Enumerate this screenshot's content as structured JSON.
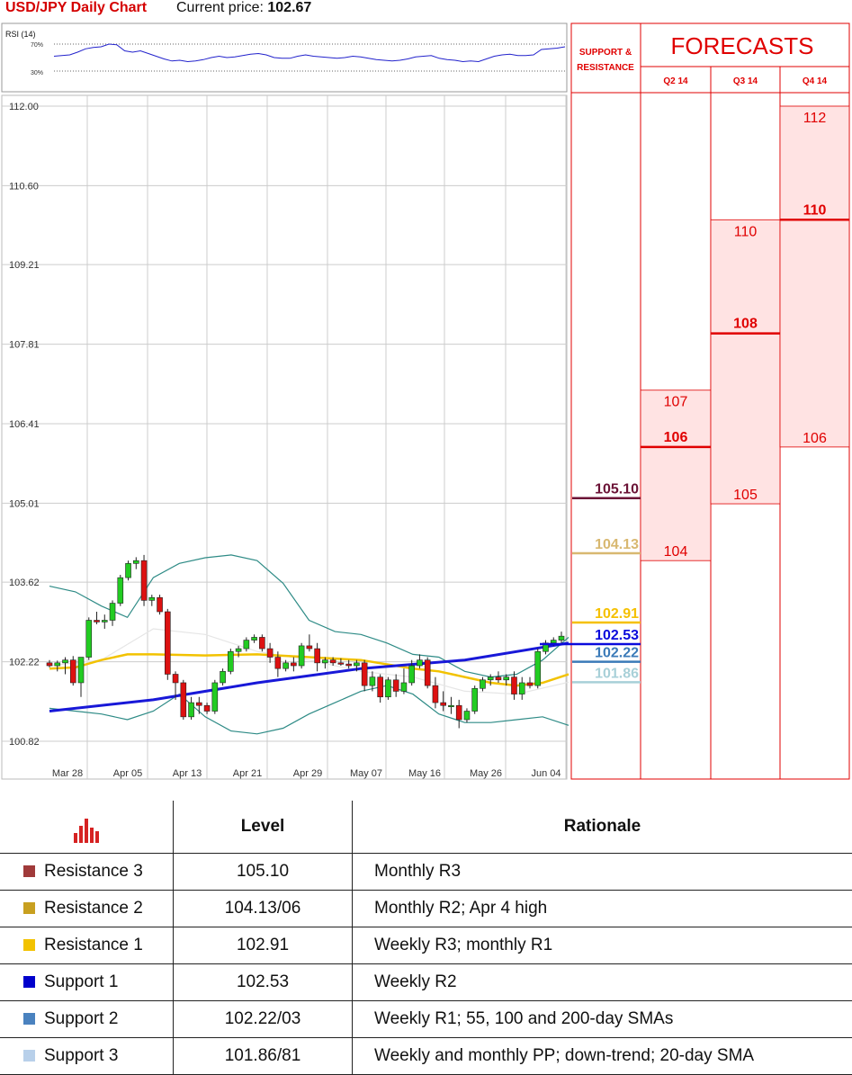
{
  "header": {
    "title": "USD/JPY Daily Chart",
    "price_label": "Current price:",
    "price_value": "102.67"
  },
  "rsi": {
    "label": "RSI (14)",
    "upper_label": "70%",
    "lower_label": "30%",
    "values": [
      52,
      53,
      54,
      58,
      63,
      65,
      66,
      70,
      69,
      60,
      58,
      60,
      56,
      52,
      48,
      45,
      46,
      44,
      45,
      47,
      50,
      52,
      50,
      51,
      53,
      55,
      56,
      54,
      50,
      49,
      49,
      52,
      54,
      52,
      51,
      50,
      49,
      50,
      52,
      51,
      49,
      47,
      46,
      45,
      46,
      48,
      51,
      52,
      53,
      49,
      47,
      46,
      44,
      45,
      44,
      48,
      52,
      54,
      55,
      53,
      53,
      54,
      62,
      63,
      64,
      66
    ]
  },
  "chart_data": {
    "type": "candlestick",
    "title": "USD/JPY Daily Chart",
    "ylim": [
      100.82,
      112.0
    ],
    "y_ticks": [
      "112.00",
      "110.60",
      "109.21",
      "107.81",
      "106.41",
      "105.01",
      "103.62",
      "102.22",
      "100.82"
    ],
    "x_ticks": [
      "Mar 28",
      "Apr 05",
      "Apr 13",
      "Apr 21",
      "Apr 29",
      "May 07",
      "May 16",
      "May 26",
      "Jun 04"
    ],
    "grid": true,
    "candles": [
      [
        102.2,
        102.25,
        102.12,
        102.15
      ],
      [
        102.15,
        102.24,
        102.05,
        102.2
      ],
      [
        102.2,
        102.3,
        102.0,
        102.25
      ],
      [
        102.25,
        102.32,
        101.8,
        101.85
      ],
      [
        101.85,
        102.3,
        101.6,
        102.3
      ],
      [
        102.3,
        103.0,
        102.25,
        102.95
      ],
      [
        102.95,
        103.1,
        102.88,
        102.92
      ],
      [
        102.92,
        103.05,
        102.8,
        102.95
      ],
      [
        102.95,
        103.3,
        102.85,
        103.25
      ],
      [
        103.25,
        103.75,
        103.2,
        103.7
      ],
      [
        103.7,
        104.0,
        103.65,
        103.95
      ],
      [
        103.95,
        104.06,
        103.85,
        104.0
      ],
      [
        104.0,
        104.1,
        103.2,
        103.3
      ],
      [
        103.3,
        103.4,
        103.2,
        103.35
      ],
      [
        103.35,
        103.4,
        103.05,
        103.1
      ],
      [
        103.1,
        103.15,
        101.9,
        102.0
      ],
      [
        102.0,
        102.05,
        101.55,
        101.85
      ],
      [
        101.85,
        101.9,
        101.2,
        101.25
      ],
      [
        101.25,
        101.6,
        101.2,
        101.5
      ],
      [
        101.5,
        101.6,
        101.3,
        101.45
      ],
      [
        101.45,
        101.5,
        101.3,
        101.35
      ],
      [
        101.35,
        101.9,
        101.3,
        101.85
      ],
      [
        101.85,
        102.1,
        101.8,
        102.05
      ],
      [
        102.05,
        102.45,
        102.0,
        102.4
      ],
      [
        102.4,
        102.5,
        102.3,
        102.45
      ],
      [
        102.45,
        102.65,
        102.4,
        102.6
      ],
      [
        102.6,
        102.7,
        102.55,
        102.65
      ],
      [
        102.65,
        102.7,
        102.4,
        102.45
      ],
      [
        102.45,
        102.55,
        102.2,
        102.3
      ],
      [
        102.3,
        102.4,
        101.95,
        102.1
      ],
      [
        102.1,
        102.25,
        102.05,
        102.2
      ],
      [
        102.2,
        102.3,
        102.05,
        102.15
      ],
      [
        102.15,
        102.55,
        102.1,
        102.5
      ],
      [
        102.5,
        102.7,
        102.4,
        102.45
      ],
      [
        102.45,
        102.55,
        102.05,
        102.2
      ],
      [
        102.2,
        102.3,
        102.1,
        102.25
      ],
      [
        102.25,
        102.3,
        102.15,
        102.2
      ],
      [
        102.2,
        102.28,
        102.15,
        102.18
      ],
      [
        102.18,
        102.25,
        102.1,
        102.15
      ],
      [
        102.15,
        102.25,
        102.05,
        102.2
      ],
      [
        102.2,
        102.25,
        101.7,
        101.8
      ],
      [
        101.8,
        102.05,
        101.7,
        101.95
      ],
      [
        101.95,
        102.0,
        101.5,
        101.6
      ],
      [
        101.6,
        101.95,
        101.55,
        101.9
      ],
      [
        101.9,
        102.0,
        101.6,
        101.7
      ],
      [
        101.7,
        102.1,
        101.65,
        101.85
      ],
      [
        101.85,
        102.25,
        101.8,
        102.15
      ],
      [
        102.15,
        102.35,
        102.1,
        102.25
      ],
      [
        102.25,
        102.3,
        101.75,
        101.8
      ],
      [
        101.8,
        101.95,
        101.4,
        101.5
      ],
      [
        101.5,
        101.7,
        101.35,
        101.45
      ],
      [
        101.45,
        101.6,
        101.3,
        101.45
      ],
      [
        101.45,
        101.55,
        101.05,
        101.2
      ],
      [
        101.2,
        101.4,
        101.15,
        101.35
      ],
      [
        101.35,
        101.8,
        101.3,
        101.75
      ],
      [
        101.75,
        101.95,
        101.7,
        101.9
      ],
      [
        101.9,
        102.0,
        101.8,
        101.95
      ],
      [
        101.95,
        102.05,
        101.85,
        101.9
      ],
      [
        101.9,
        102.0,
        101.8,
        101.95
      ],
      [
        101.95,
        102.05,
        101.55,
        101.65
      ],
      [
        101.65,
        101.95,
        101.55,
        101.85
      ],
      [
        101.85,
        101.95,
        101.75,
        101.8
      ],
      [
        101.8,
        102.45,
        101.75,
        102.4
      ],
      [
        102.4,
        102.6,
        102.35,
        102.55
      ],
      [
        102.55,
        102.65,
        102.5,
        102.6
      ],
      [
        102.6,
        102.75,
        102.55,
        102.67
      ]
    ],
    "bollinger_upper": [
      [
        0,
        103.55
      ],
      [
        0.05,
        103.45
      ],
      [
        0.1,
        103.2
      ],
      [
        0.15,
        103.0
      ],
      [
        0.2,
        103.7
      ],
      [
        0.25,
        103.95
      ],
      [
        0.3,
        104.05
      ],
      [
        0.35,
        104.1
      ],
      [
        0.4,
        104.0
      ],
      [
        0.45,
        103.6
      ],
      [
        0.5,
        102.95
      ],
      [
        0.55,
        102.75
      ],
      [
        0.6,
        102.7
      ],
      [
        0.65,
        102.55
      ],
      [
        0.7,
        102.35
      ],
      [
        0.75,
        102.3
      ],
      [
        0.8,
        102.05
      ],
      [
        0.85,
        101.95
      ],
      [
        0.9,
        102.0
      ],
      [
        0.95,
        102.25
      ],
      [
        1.0,
        102.65
      ]
    ],
    "bollinger_lower": [
      [
        0,
        101.4
      ],
      [
        0.05,
        101.35
      ],
      [
        0.1,
        101.3
      ],
      [
        0.15,
        101.2
      ],
      [
        0.2,
        101.35
      ],
      [
        0.25,
        101.65
      ],
      [
        0.3,
        101.25
      ],
      [
        0.35,
        101.0
      ],
      [
        0.4,
        100.95
      ],
      [
        0.45,
        101.05
      ],
      [
        0.5,
        101.3
      ],
      [
        0.55,
        101.5
      ],
      [
        0.6,
        101.7
      ],
      [
        0.65,
        101.8
      ],
      [
        0.7,
        101.65
      ],
      [
        0.75,
        101.3
      ],
      [
        0.8,
        101.15
      ],
      [
        0.85,
        101.15
      ],
      [
        0.9,
        101.2
      ],
      [
        0.95,
        101.25
      ],
      [
        1.0,
        101.1
      ]
    ],
    "sma_20": [
      [
        0,
        102.15
      ],
      [
        0.1,
        102.25
      ],
      [
        0.2,
        102.8
      ],
      [
        0.3,
        102.7
      ],
      [
        0.4,
        102.4
      ],
      [
        0.5,
        102.25
      ],
      [
        0.6,
        102.05
      ],
      [
        0.7,
        101.95
      ],
      [
        0.8,
        101.7
      ],
      [
        0.9,
        101.65
      ],
      [
        1.0,
        101.86
      ]
    ],
    "sma_yellow": [
      [
        0,
        102.1
      ],
      [
        0.05,
        102.12
      ],
      [
        0.1,
        102.25
      ],
      [
        0.15,
        102.35
      ],
      [
        0.2,
        102.35
      ],
      [
        0.3,
        102.33
      ],
      [
        0.4,
        102.35
      ],
      [
        0.5,
        102.3
      ],
      [
        0.6,
        102.25
      ],
      [
        0.7,
        102.1
      ],
      [
        0.75,
        102.05
      ],
      [
        0.8,
        101.95
      ],
      [
        0.85,
        101.85
      ],
      [
        0.9,
        101.8
      ],
      [
        0.95,
        101.85
      ],
      [
        1.0,
        102.0
      ]
    ],
    "trend_line": [
      [
        0,
        101.35
      ],
      [
        0.2,
        101.55
      ],
      [
        0.4,
        101.85
      ],
      [
        0.6,
        102.1
      ],
      [
        0.8,
        102.25
      ],
      [
        1.0,
        102.55
      ]
    ],
    "levels": [
      {
        "name": "Resistance 3",
        "value": 105.1,
        "label": "105.10",
        "color": "#6b1236"
      },
      {
        "name": "Resistance 2",
        "value": 104.13,
        "label": "104.13",
        "color": "#d8b870"
      },
      {
        "name": "Resistance 1",
        "value": 102.91,
        "label": "102.91",
        "color": "#f5c000"
      },
      {
        "name": "Support 1",
        "value": 102.53,
        "label": "102.53",
        "color": "#0a0adc"
      },
      {
        "name": "Support 2",
        "value": 102.22,
        "label": "102.22",
        "color": "#3a7ab8"
      },
      {
        "name": "Support 3",
        "value": 101.86,
        "label": "101.86",
        "color": "#a8d0d8"
      }
    ]
  },
  "sr_header": {
    "line1": "SUPPORT &",
    "line2": "RESISTANCE"
  },
  "forecasts": {
    "title": "FORECASTS",
    "columns": [
      {
        "label": "Q2 14",
        "low": 104,
        "mid": 106,
        "high": 107,
        "low_label": "104",
        "mid_label": "106",
        "high_label": "107"
      },
      {
        "label": "Q3 14",
        "low": 105,
        "mid": 108,
        "high": 110,
        "low_label": "105",
        "mid_label": "108",
        "high_label": "110"
      },
      {
        "label": "Q4 14",
        "low": 106,
        "mid": 110,
        "high": 112,
        "low_label": "106",
        "mid_label": "110",
        "high_label": "112"
      }
    ]
  },
  "table": {
    "col_level": "Level",
    "col_rationale": "Rationale",
    "rows": [
      {
        "name": "Resistance 3",
        "level": "105.10",
        "rationale": "Monthly R3",
        "color": "#a03a3a"
      },
      {
        "name": "Resistance 2",
        "level": "104.13/06",
        "rationale": "Monthly R2; Apr 4 high",
        "color": "#c8a020"
      },
      {
        "name": "Resistance 1",
        "level": "102.91",
        "rationale": "Weekly R3; monthly R1",
        "color": "#f2c200"
      },
      {
        "name": "Support 1",
        "level": "102.53",
        "rationale": "Weekly R2",
        "color": "#0000cc"
      },
      {
        "name": "Support 2",
        "level": "102.22/03",
        "rationale": "Weekly R1; 55, 100 and 200-day SMAs",
        "color": "#4a82bf"
      },
      {
        "name": "Support 3",
        "level": "101.86/81",
        "rationale": "Weekly and monthly PP; down-trend; 20-day SMA",
        "color": "#b8d0ea"
      }
    ]
  }
}
